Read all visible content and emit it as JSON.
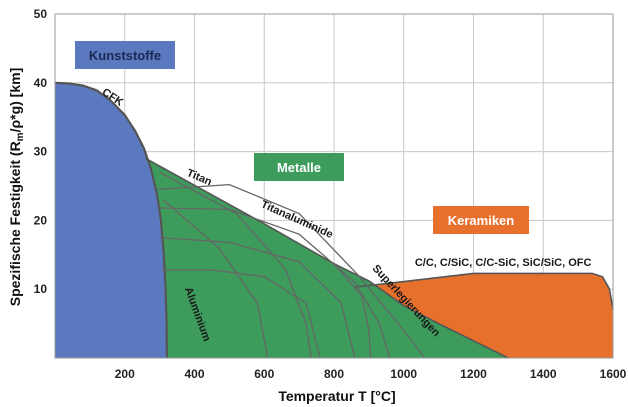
{
  "chart_data": {
    "type": "area",
    "xlabel": "Temperatur T [°C]",
    "ylabel_main": "Spezifische Festigkeit (R",
    "ylabel_sub": "m",
    "ylabel_tail": "/ρ*g) [km]",
    "xlim": [
      0,
      1600
    ],
    "ylim": [
      0,
      50
    ],
    "x_ticks": [
      200,
      400,
      600,
      800,
      1000,
      1200,
      1400,
      1600
    ],
    "y_ticks": [
      10,
      20,
      30,
      40,
      50
    ],
    "grid": true,
    "regions": [
      {
        "name": "Kunststoffe",
        "color": "#5b79be"
      },
      {
        "name": "Metalle",
        "color": "#3d9b5c"
      },
      {
        "name": "Keramiken",
        "color": "#e8702d"
      }
    ],
    "curve_labels": [
      {
        "text": "CFK",
        "x": 160,
        "y": 37.5,
        "angle": 34
      },
      {
        "text": "Titan",
        "x": 410,
        "y": 25.8,
        "angle": 23
      },
      {
        "text": "Titanaluminide",
        "x": 690,
        "y": 19.7,
        "angle": 24
      },
      {
        "text": "Superlegierungen",
        "x": 1000,
        "y": 8.0,
        "angle": 47
      },
      {
        "text": "Aluminium",
        "x": 400,
        "y": 6.2,
        "angle": 70
      },
      {
        "text": "C/C, C/SiC, C/C-SiC, SiC/SiC, OFC",
        "x": 1285,
        "y": 13.4,
        "angle": 0
      }
    ],
    "boundary": {
      "kunststoffe": [
        [
          0,
          40
        ],
        [
          40,
          39.9
        ],
        [
          80,
          39.6
        ],
        [
          120,
          38.9
        ],
        [
          160,
          37.4
        ],
        [
          200,
          35.3
        ],
        [
          230,
          33
        ],
        [
          255,
          30.5
        ],
        [
          275,
          27.5
        ],
        [
          292,
          24
        ],
        [
          304,
          20
        ],
        [
          312,
          15
        ],
        [
          317,
          10
        ],
        [
          320,
          5
        ],
        [
          321,
          0
        ]
      ],
      "metalle": [
        [
          260,
          29
        ],
        [
          400,
          25.1
        ],
        [
          600,
          19.5
        ],
        [
          800,
          13.7
        ],
        [
          900,
          11.2
        ],
        [
          1000,
          7.6
        ],
        [
          1100,
          5
        ],
        [
          1200,
          2.5
        ],
        [
          1300,
          0
        ]
      ],
      "keramiken": [
        [
          320,
          3
        ],
        [
          860,
          10.3
        ],
        [
          1000,
          11.1
        ],
        [
          1200,
          12.3
        ],
        [
          1540,
          12.3
        ],
        [
          1570,
          11.8
        ],
        [
          1590,
          10
        ],
        [
          1600,
          7
        ],
        [
          1600,
          0
        ],
        [
          320,
          0
        ]
      ]
    },
    "inner_curves": [
      [
        [
          294,
          24.5
        ],
        [
          500,
          25.2
        ],
        [
          700,
          21
        ],
        [
          870,
          12
        ],
        [
          1000,
          4
        ],
        [
          1060,
          0
        ]
      ],
      [
        [
          296,
          21.8
        ],
        [
          500,
          21.6
        ],
        [
          700,
          18
        ],
        [
          860,
          11
        ],
        [
          930,
          5
        ],
        [
          960,
          0
        ]
      ],
      [
        [
          300,
          17.5
        ],
        [
          500,
          16.8
        ],
        [
          700,
          14
        ],
        [
          820,
          8
        ],
        [
          860,
          0
        ]
      ],
      [
        [
          306,
          12.8
        ],
        [
          450,
          12.8
        ],
        [
          600,
          11.8
        ],
        [
          720,
          8
        ],
        [
          760,
          0
        ]
      ],
      [
        [
          800,
          13.7
        ],
        [
          880,
          9
        ],
        [
          900,
          4
        ],
        [
          905,
          0
        ]
      ],
      [
        [
          300,
          27
        ],
        [
          520,
          21
        ],
        [
          660,
          13
        ],
        [
          720,
          5
        ],
        [
          735,
          0
        ]
      ],
      [
        [
          310,
          23
        ],
        [
          470,
          16
        ],
        [
          580,
          8
        ],
        [
          610,
          0
        ]
      ]
    ]
  }
}
